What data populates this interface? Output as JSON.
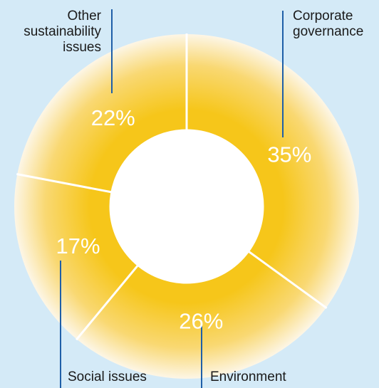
{
  "colors": {
    "background": "#d4eaf7",
    "ring_core": "#f6c61a",
    "ring_mid": "#f9d872",
    "ring_edge": "#fdf6e6",
    "divider": "#ffffff",
    "leader_line": "#1f5fa8",
    "label_text": "#1a1a1a",
    "percent_text": "#ffffff"
  },
  "chart_data": {
    "type": "pie",
    "variant": "donut",
    "title": "",
    "unit": "%",
    "slices": [
      {
        "label": "Corporate governance",
        "value": 35,
        "value_label": "35%"
      },
      {
        "label": "Environment",
        "value": 26,
        "value_label": "26%"
      },
      {
        "label": "Social issues",
        "value": 17,
        "value_label": "17%"
      },
      {
        "label": "Other sustainability issues",
        "value": 22,
        "value_label": "22%"
      }
    ]
  }
}
